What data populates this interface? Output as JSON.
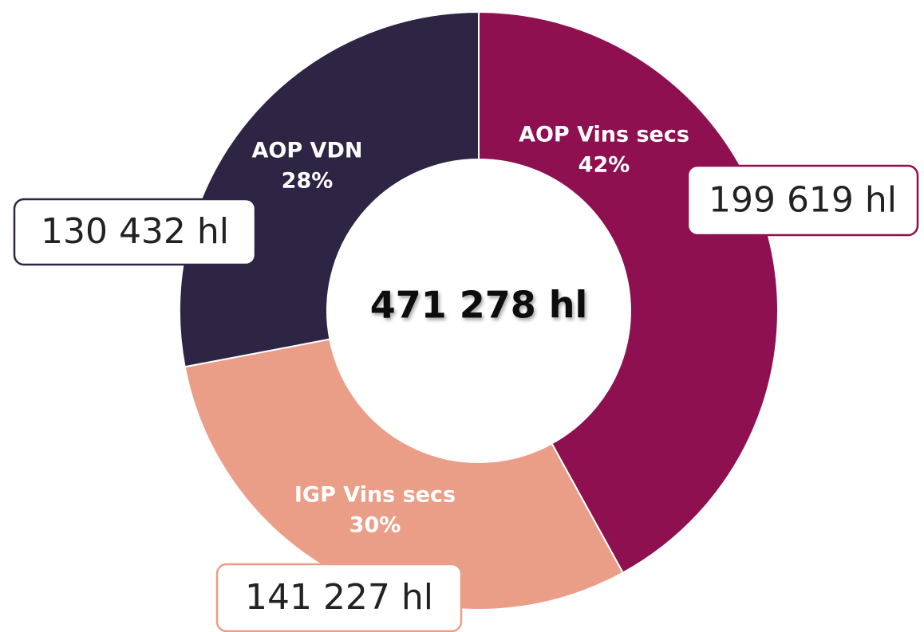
{
  "chart_data": {
    "type": "donut",
    "categories": [
      "AOP Vins secs",
      "IGP Vins secs",
      "AOP VDN"
    ],
    "values": [
      42,
      30,
      28
    ],
    "value_labels": [
      "42%",
      "30%",
      "28%"
    ],
    "volume_labels": [
      "199 619 hl",
      "141 227 hl",
      "130 432 hl"
    ],
    "center_label": "471 278 hl",
    "colors": [
      "#8e1050",
      "#eb9e87",
      "#2e2443"
    ]
  }
}
